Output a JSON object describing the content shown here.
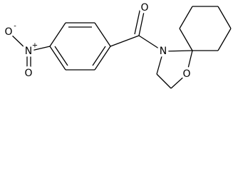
{
  "atoms": [
    {
      "label": "O"
    },
    {
      "label": "N"
    },
    {
      "label": "O"
    },
    {
      "label": "N"
    },
    {
      "label": "O"
    },
    {
      "label": "O"
    }
  ],
  "charges": [
    "+",
    "-"
  ]
}
